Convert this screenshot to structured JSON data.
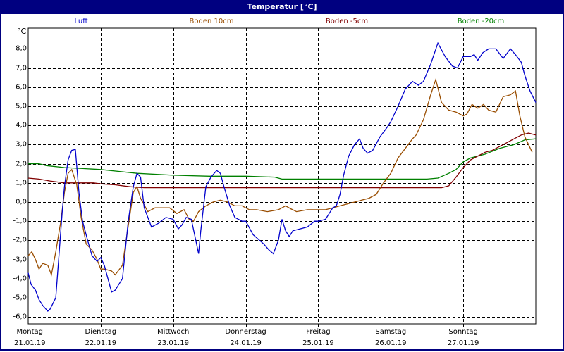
{
  "window": {
    "title": "Temperatur [°C]",
    "border_color": "#000080"
  },
  "legend": [
    {
      "label": "Luft",
      "color": "#0000cc"
    },
    {
      "label": "Boden 10cm",
      "color": "#994d00"
    },
    {
      "label": "Boden -5cm",
      "color": "#800000"
    },
    {
      "label": "Boden -20cm",
      "color": "#008000"
    }
  ],
  "axis": {
    "unit": "°C",
    "y_ticks": [
      "8,0",
      "7,0",
      "6,0",
      "5,0",
      "4,0",
      "3,0",
      "2,0",
      "1,0",
      "0,0",
      "-1,0",
      "-2,0",
      "-3,0",
      "-4,0",
      "-5,0",
      "-6,0"
    ],
    "x_days": [
      {
        "day": "Montag",
        "date": "21.01.19"
      },
      {
        "day": "Dienstag",
        "date": "22.01.19"
      },
      {
        "day": "Mittwoch",
        "date": "23.01.19"
      },
      {
        "day": "Donnerstag",
        "date": "24.01.19"
      },
      {
        "day": "Freitag",
        "date": "25.01.19"
      },
      {
        "day": "Samstag",
        "date": "26.01.19"
      },
      {
        "day": "Sonntag",
        "date": "27.01.19"
      }
    ]
  },
  "chart_data": {
    "type": "line",
    "title": "Temperatur [°C]",
    "xlabel": "",
    "ylabel": "°C",
    "ylim": [
      -6.4,
      8.6
    ],
    "xlim_days": [
      0,
      7
    ],
    "x_unit": "days since Montag 21.01.19 00:00",
    "categories": [
      "Montag 21.01.19",
      "Dienstag 22.01.19",
      "Mittwoch 23.01.19",
      "Donnerstag 24.01.19",
      "Freitag 25.01.19",
      "Samstag 26.01.19",
      "Sonntag 27.01.19"
    ],
    "grid": true,
    "legend_position": "top",
    "series": [
      {
        "name": "Luft",
        "color": "#0000cc",
        "points": [
          [
            0,
            -3.7
          ],
          [
            0.04,
            -4.3
          ],
          [
            0.1,
            -4.6
          ],
          [
            0.15,
            -5.1
          ],
          [
            0.2,
            -5.4
          ],
          [
            0.27,
            -5.7
          ],
          [
            0.3,
            -5.6
          ],
          [
            0.38,
            -5.0
          ],
          [
            0.42,
            -3.0
          ],
          [
            0.47,
            -0.5
          ],
          [
            0.5,
            0.8
          ],
          [
            0.55,
            2.2
          ],
          [
            0.6,
            2.7
          ],
          [
            0.65,
            2.75
          ],
          [
            0.7,
            0.5
          ],
          [
            0.75,
            -1.0
          ],
          [
            0.82,
            -2.0
          ],
          [
            0.88,
            -2.8
          ],
          [
            0.95,
            -3.1
          ],
          [
            1.0,
            -2.9
          ],
          [
            1.05,
            -3.3
          ],
          [
            1.1,
            -4.0
          ],
          [
            1.15,
            -4.7
          ],
          [
            1.2,
            -4.6
          ],
          [
            1.3,
            -4.0
          ],
          [
            1.38,
            -1.0
          ],
          [
            1.45,
            0.8
          ],
          [
            1.5,
            1.5
          ],
          [
            1.55,
            1.3
          ],
          [
            1.6,
            -0.3
          ],
          [
            1.7,
            -1.3
          ],
          [
            1.8,
            -1.1
          ],
          [
            1.9,
            -0.8
          ],
          [
            2.0,
            -0.9
          ],
          [
            2.07,
            -1.4
          ],
          [
            2.12,
            -1.2
          ],
          [
            2.18,
            -0.8
          ],
          [
            2.25,
            -0.9
          ],
          [
            2.3,
            -1.8
          ],
          [
            2.35,
            -2.7
          ],
          [
            2.38,
            -1.5
          ],
          [
            2.45,
            0.8
          ],
          [
            2.52,
            1.3
          ],
          [
            2.6,
            1.65
          ],
          [
            2.65,
            1.5
          ],
          [
            2.7,
            0.8
          ],
          [
            2.78,
            -0.2
          ],
          [
            2.85,
            -0.8
          ],
          [
            2.95,
            -1.0
          ],
          [
            3.0,
            -1.0
          ],
          [
            3.1,
            -1.7
          ],
          [
            3.25,
            -2.2
          ],
          [
            3.32,
            -2.5
          ],
          [
            3.38,
            -2.7
          ],
          [
            3.45,
            -2.0
          ],
          [
            3.5,
            -0.9
          ],
          [
            3.55,
            -1.5
          ],
          [
            3.6,
            -1.8
          ],
          [
            3.65,
            -1.5
          ],
          [
            3.75,
            -1.4
          ],
          [
            3.85,
            -1.3
          ],
          [
            3.95,
            -1.0
          ],
          [
            4.0,
            -1.0
          ],
          [
            4.1,
            -0.9
          ],
          [
            4.15,
            -0.6
          ],
          [
            4.2,
            -0.3
          ],
          [
            4.25,
            -0.2
          ],
          [
            4.3,
            0.4
          ],
          [
            4.35,
            1.4
          ],
          [
            4.42,
            2.4
          ],
          [
            4.5,
            3.0
          ],
          [
            4.57,
            3.3
          ],
          [
            4.62,
            2.8
          ],
          [
            4.68,
            2.55
          ],
          [
            4.75,
            2.7
          ],
          [
            4.85,
            3.4
          ],
          [
            4.95,
            3.9
          ],
          [
            5.0,
            4.2
          ],
          [
            5.1,
            5.0
          ],
          [
            5.2,
            5.9
          ],
          [
            5.3,
            6.3
          ],
          [
            5.38,
            6.1
          ],
          [
            5.45,
            6.3
          ],
          [
            5.55,
            7.2
          ],
          [
            5.65,
            8.3
          ],
          [
            5.75,
            7.6
          ],
          [
            5.85,
            7.1
          ],
          [
            5.92,
            7.0
          ],
          [
            6.0,
            7.6
          ],
          [
            6.1,
            7.6
          ],
          [
            6.15,
            7.7
          ],
          [
            6.2,
            7.4
          ],
          [
            6.27,
            7.8
          ],
          [
            6.35,
            8.0
          ],
          [
            6.45,
            8.0
          ],
          [
            6.55,
            7.5
          ],
          [
            6.65,
            8.0
          ],
          [
            6.72,
            7.7
          ],
          [
            6.8,
            7.3
          ],
          [
            6.85,
            6.6
          ],
          [
            6.92,
            5.8
          ],
          [
            7.0,
            5.2
          ],
          [
            7.08,
            4.5
          ],
          [
            7.15,
            4.0
          ],
          [
            7.2,
            4.2
          ]
        ]
      },
      {
        "name": "Boden 10cm",
        "color": "#994d00",
        "points": [
          [
            0,
            -2.8
          ],
          [
            0.05,
            -2.6
          ],
          [
            0.1,
            -3.0
          ],
          [
            0.15,
            -3.5
          ],
          [
            0.2,
            -3.2
          ],
          [
            0.27,
            -3.3
          ],
          [
            0.32,
            -3.8
          ],
          [
            0.38,
            -2.6
          ],
          [
            0.45,
            -1.0
          ],
          [
            0.5,
            0.5
          ],
          [
            0.55,
            1.5
          ],
          [
            0.6,
            1.7
          ],
          [
            0.67,
            0.9
          ],
          [
            0.73,
            -0.8
          ],
          [
            0.8,
            -2.2
          ],
          [
            0.88,
            -2.5
          ],
          [
            0.95,
            -3.0
          ],
          [
            1.0,
            -3.5
          ],
          [
            1.05,
            -3.5
          ],
          [
            1.15,
            -3.6
          ],
          [
            1.2,
            -3.8
          ],
          [
            1.3,
            -3.3
          ],
          [
            1.37,
            -1.5
          ],
          [
            1.45,
            0.5
          ],
          [
            1.5,
            0.8
          ],
          [
            1.55,
            0.2
          ],
          [
            1.65,
            -0.5
          ],
          [
            1.75,
            -0.3
          ],
          [
            1.85,
            -0.3
          ],
          [
            1.95,
            -0.3
          ],
          [
            2.05,
            -0.6
          ],
          [
            2.15,
            -0.4
          ],
          [
            2.22,
            -0.9
          ],
          [
            2.28,
            -1.0
          ],
          [
            2.35,
            -0.5
          ],
          [
            2.45,
            -0.2
          ],
          [
            2.55,
            0.0
          ],
          [
            2.65,
            0.1
          ],
          [
            2.75,
            0.0
          ],
          [
            2.85,
            -0.2
          ],
          [
            2.95,
            -0.2
          ],
          [
            3.05,
            -0.4
          ],
          [
            3.15,
            -0.4
          ],
          [
            3.3,
            -0.5
          ],
          [
            3.45,
            -0.4
          ],
          [
            3.55,
            -0.2
          ],
          [
            3.62,
            -0.35
          ],
          [
            3.7,
            -0.5
          ],
          [
            3.85,
            -0.4
          ],
          [
            4.0,
            -0.4
          ],
          [
            4.1,
            -0.4
          ],
          [
            4.2,
            -0.3
          ],
          [
            4.3,
            -0.2
          ],
          [
            4.4,
            -0.1
          ],
          [
            4.5,
            0.0
          ],
          [
            4.6,
            0.1
          ],
          [
            4.7,
            0.2
          ],
          [
            4.8,
            0.4
          ],
          [
            4.9,
            1.0
          ],
          [
            5.0,
            1.5
          ],
          [
            5.1,
            2.3
          ],
          [
            5.2,
            2.8
          ],
          [
            5.3,
            3.3
          ],
          [
            5.35,
            3.5
          ],
          [
            5.45,
            4.3
          ],
          [
            5.55,
            5.6
          ],
          [
            5.62,
            6.4
          ],
          [
            5.7,
            5.2
          ],
          [
            5.8,
            4.8
          ],
          [
            5.9,
            4.7
          ],
          [
            6.0,
            4.5
          ],
          [
            6.05,
            4.6
          ],
          [
            6.12,
            5.1
          ],
          [
            6.2,
            4.9
          ],
          [
            6.28,
            5.1
          ],
          [
            6.35,
            4.8
          ],
          [
            6.45,
            4.7
          ],
          [
            6.55,
            5.5
          ],
          [
            6.65,
            5.6
          ],
          [
            6.72,
            5.8
          ],
          [
            6.78,
            4.5
          ],
          [
            6.85,
            3.4
          ],
          [
            6.95,
            2.6
          ],
          [
            7.05,
            2.3
          ],
          [
            7.2,
            2.5
          ]
        ]
      },
      {
        "name": "Boden -5cm",
        "color": "#800000",
        "points": [
          [
            0,
            1.25
          ],
          [
            0.15,
            1.2
          ],
          [
            0.3,
            1.1
          ],
          [
            0.5,
            1.0
          ],
          [
            0.7,
            1.0
          ],
          [
            0.9,
            1.0
          ],
          [
            1.0,
            0.95
          ],
          [
            1.2,
            0.9
          ],
          [
            1.4,
            0.8
          ],
          [
            1.6,
            0.75
          ],
          [
            2.0,
            0.75
          ],
          [
            3.0,
            0.75
          ],
          [
            4.0,
            0.75
          ],
          [
            5.0,
            0.75
          ],
          [
            5.7,
            0.75
          ],
          [
            5.8,
            0.85
          ],
          [
            5.9,
            1.3
          ],
          [
            6.0,
            1.8
          ],
          [
            6.1,
            2.2
          ],
          [
            6.2,
            2.4
          ],
          [
            6.3,
            2.6
          ],
          [
            6.4,
            2.7
          ],
          [
            6.5,
            2.9
          ],
          [
            6.6,
            3.1
          ],
          [
            6.7,
            3.3
          ],
          [
            6.8,
            3.5
          ],
          [
            6.9,
            3.6
          ],
          [
            7.0,
            3.5
          ],
          [
            7.1,
            3.3
          ],
          [
            7.2,
            3.1
          ]
        ]
      },
      {
        "name": "Boden -20cm",
        "color": "#008000",
        "points": [
          [
            0,
            2.0
          ],
          [
            0.15,
            2.0
          ],
          [
            0.25,
            1.9
          ],
          [
            0.5,
            1.8
          ],
          [
            0.75,
            1.75
          ],
          [
            1.0,
            1.7
          ],
          [
            1.25,
            1.6
          ],
          [
            1.5,
            1.5
          ],
          [
            2.0,
            1.4
          ],
          [
            2.5,
            1.35
          ],
          [
            3.0,
            1.35
          ],
          [
            3.4,
            1.3
          ],
          [
            3.5,
            1.2
          ],
          [
            4.0,
            1.2
          ],
          [
            4.5,
            1.2
          ],
          [
            5.0,
            1.2
          ],
          [
            5.5,
            1.2
          ],
          [
            5.65,
            1.25
          ],
          [
            5.8,
            1.5
          ],
          [
            5.9,
            1.7
          ],
          [
            6.0,
            2.1
          ],
          [
            6.1,
            2.3
          ],
          [
            6.3,
            2.5
          ],
          [
            6.5,
            2.8
          ],
          [
            6.7,
            3.0
          ],
          [
            6.85,
            3.25
          ],
          [
            7.0,
            3.3
          ],
          [
            7.2,
            3.2
          ]
        ]
      }
    ]
  }
}
